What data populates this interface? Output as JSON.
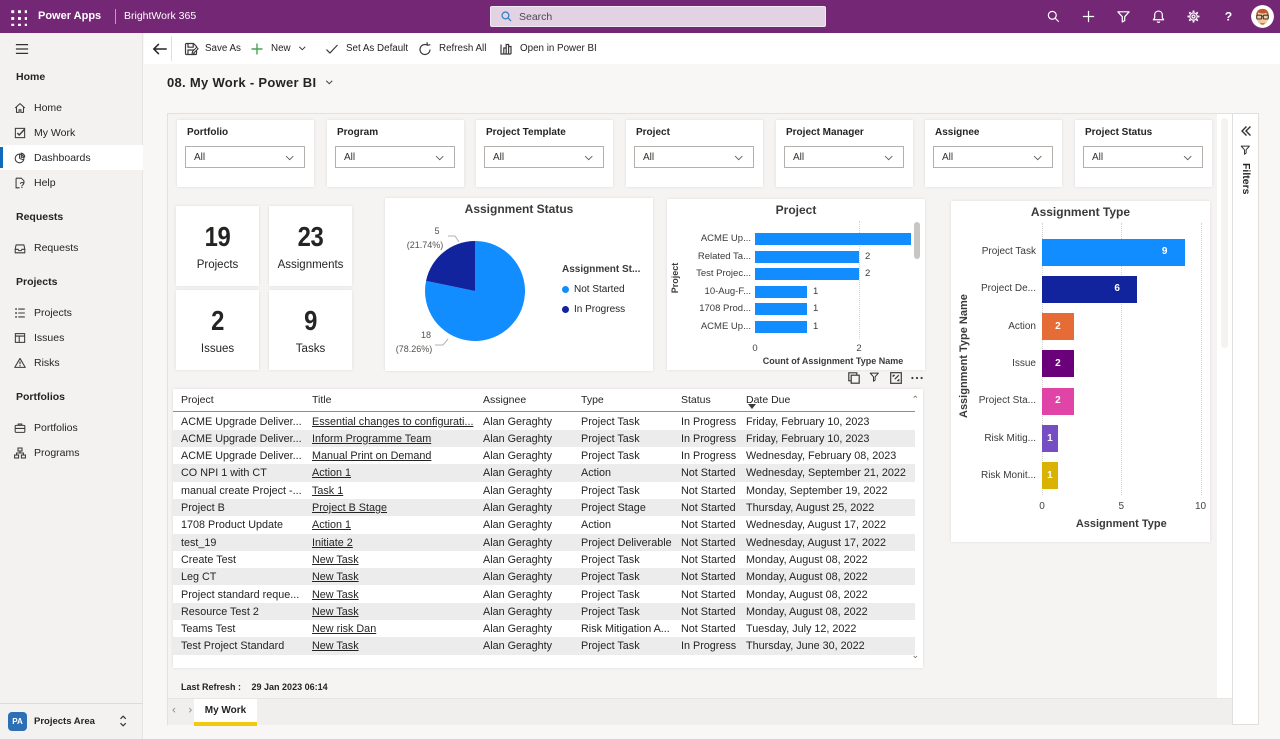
{
  "topbar": {
    "app_name": "Power Apps",
    "env_name": "BrightWork 365",
    "search_placeholder": "Search",
    "right_icons": [
      "search",
      "add",
      "filter",
      "bell",
      "gear",
      "help"
    ]
  },
  "sidebar": {
    "groups": [
      {
        "label": "Home",
        "items": [
          {
            "label": "Home",
            "icon": "home",
            "selected": false
          },
          {
            "label": "My Work",
            "icon": "mywork",
            "selected": false
          },
          {
            "label": "Dashboards",
            "icon": "dashboards",
            "selected": true
          },
          {
            "label": "Help",
            "icon": "helpdoc",
            "selected": false
          }
        ]
      },
      {
        "label": "Requests",
        "items": [
          {
            "label": "Requests",
            "icon": "requests",
            "selected": false
          }
        ]
      },
      {
        "label": "Projects",
        "items": [
          {
            "label": "Projects",
            "icon": "projects",
            "selected": false
          },
          {
            "label": "Issues",
            "icon": "issues",
            "selected": false
          },
          {
            "label": "Risks",
            "icon": "risks",
            "selected": false
          }
        ]
      },
      {
        "label": "Portfolios",
        "items": [
          {
            "label": "Portfolios",
            "icon": "portfolios",
            "selected": false
          },
          {
            "label": "Programs",
            "icon": "programs",
            "selected": false
          }
        ]
      }
    ],
    "footer": {
      "badge": "PA",
      "label": "Projects Area"
    }
  },
  "command_bar": {
    "items": [
      {
        "label": "Save As",
        "icon": "saveas",
        "chevron": false
      },
      {
        "label": "New",
        "icon": "plus-green",
        "chevron": true
      },
      {
        "label": "Set As Default",
        "icon": "check",
        "chevron": false
      },
      {
        "label": "Refresh All",
        "icon": "refresh",
        "chevron": false
      },
      {
        "label": "Open in Power BI",
        "icon": "openbi",
        "chevron": false
      }
    ]
  },
  "page": {
    "title": "08. My Work - Power BI"
  },
  "slicers": [
    {
      "label": "Portfolio",
      "value": "All"
    },
    {
      "label": "Program",
      "value": "All"
    },
    {
      "label": "Project Template",
      "value": "All"
    },
    {
      "label": "Project",
      "value": "All"
    },
    {
      "label": "Project Manager",
      "value": "All"
    },
    {
      "label": "Assignee",
      "value": "All"
    },
    {
      "label": "Project Status",
      "value": "All"
    }
  ],
  "kpis": [
    {
      "value": "19",
      "label": "Projects"
    },
    {
      "value": "23",
      "label": "Assignments"
    },
    {
      "value": "2",
      "label": "Issues"
    },
    {
      "value": "9",
      "label": "Tasks"
    }
  ],
  "chart_data": [
    {
      "id": "assignment-status-pie",
      "type": "pie",
      "title": "Assignment Status",
      "legend_title": "Assignment St...",
      "legend_position": "right",
      "slices": [
        {
          "label": "Not Started",
          "value": 18,
          "value_label": "18",
          "pct_label": "(78.26%)",
          "color": "#118DFF"
        },
        {
          "label": "In Progress",
          "value": 5,
          "value_label": "5",
          "pct_label": "(21.74%)",
          "color": "#12239E"
        }
      ]
    },
    {
      "id": "project-bar",
      "type": "bar",
      "orientation": "horizontal",
      "title": "Project",
      "categories": [
        "ACME Up...",
        "Related Ta...",
        "Test Projec...",
        "10-Aug-F...",
        "1708 Prod...",
        "ACME Up..."
      ],
      "values": [
        3,
        2,
        2,
        1,
        1,
        1
      ],
      "data_labels": [
        "",
        "2",
        "2",
        "1",
        "1",
        "1"
      ],
      "bar_color": "#118DFF",
      "xlabel": "Count of Assignment Type Name",
      "ylabel": "Project",
      "x_ticks": [
        "0",
        "2"
      ],
      "x_tick_values": [
        0,
        2
      ],
      "xlim": [
        0,
        3
      ],
      "grid": true
    },
    {
      "id": "assignment-type-bar",
      "type": "bar",
      "orientation": "horizontal",
      "title": "Assignment Type",
      "categories": [
        "Project Task",
        "Project De...",
        "Action",
        "Issue",
        "Project Sta...",
        "Risk Mitig...",
        "Risk Monit..."
      ],
      "values": [
        9,
        6,
        2,
        2,
        2,
        1,
        1
      ],
      "data_labels": [
        "9",
        "6",
        "2",
        "2",
        "2",
        "1",
        "1"
      ],
      "bar_colors": [
        "#118DFF",
        "#12239E",
        "#E66C37",
        "#6B007B",
        "#E044A7",
        "#744EC2",
        "#D9B300"
      ],
      "xlabel": "Assignment Type",
      "ylabel": "Assignment Type Name",
      "x_ticks": [
        "0",
        "5",
        "10"
      ],
      "x_tick_values": [
        0,
        5,
        10
      ],
      "xlim": [
        0,
        10
      ],
      "grid": true
    }
  ],
  "table": {
    "columns": [
      "Project",
      "Title",
      "Assignee",
      "Type",
      "Status",
      "Date Due"
    ],
    "sort_column": "Date Due",
    "rows": [
      [
        "ACME Upgrade Deliver...",
        "Essential changes to configurati...",
        "Alan Geraghty",
        "Project Task",
        "In Progress",
        "Friday, February 10, 2023"
      ],
      [
        "ACME Upgrade Deliver...",
        "Inform Programme Team",
        "Alan Geraghty",
        "Project Task",
        "In Progress",
        "Friday, February 10, 2023"
      ],
      [
        "ACME Upgrade Deliver...",
        "Manual Print on Demand",
        "Alan Geraghty",
        "Project Task",
        "In Progress",
        "Wednesday, February 08, 2023"
      ],
      [
        "CO NPI 1 with CT",
        "Action 1",
        "Alan Geraghty",
        "Action",
        "Not Started",
        "Wednesday, September 21, 2022"
      ],
      [
        "manual create Project -...",
        "Task 1",
        "Alan Geraghty",
        "Project Task",
        "Not Started",
        "Monday, September 19, 2022"
      ],
      [
        "Project B",
        "Project B Stage",
        "Alan Geraghty",
        "Project Stage",
        "Not Started",
        "Thursday, August 25, 2022"
      ],
      [
        "1708 Product Update",
        "Action 1",
        "Alan Geraghty",
        "Action",
        "Not Started",
        "Wednesday, August 17, 2022"
      ],
      [
        "test_19",
        "Initiate 2",
        "Alan Geraghty",
        "Project Deliverable",
        "Not Started",
        "Wednesday, August 17, 2022"
      ],
      [
        "Create Test",
        "New Task",
        "Alan Geraghty",
        "Project Task",
        "Not Started",
        "Monday, August 08, 2022"
      ],
      [
        "Leg CT",
        "New Task",
        "Alan Geraghty",
        "Project Task",
        "Not Started",
        "Monday, August 08, 2022"
      ],
      [
        "Project standard reque...",
        "New Task",
        "Alan Geraghty",
        "Project Task",
        "Not Started",
        "Monday, August 08, 2022"
      ],
      [
        "Resource Test 2",
        "New Task",
        "Alan Geraghty",
        "Project Task",
        "Not Started",
        "Monday, August 08, 2022"
      ],
      [
        "Teams Test",
        "New risk Dan",
        "Alan Geraghty",
        "Risk Mitigation A...",
        "Not Started",
        "Tuesday, July 12, 2022"
      ],
      [
        "Test Project Standard",
        "New Task",
        "Alan Geraghty",
        "Project Task",
        "In Progress",
        "Thursday, June 30, 2022"
      ]
    ]
  },
  "footer": {
    "last_refresh_label": "Last Refresh :",
    "last_refresh_value": "29 Jan 2023 06:14",
    "tabs": [
      {
        "label": "My Work",
        "active": true
      }
    ]
  },
  "filters_pane": {
    "label": "Filters"
  },
  "colors": {
    "header_purple": "#742774",
    "powerbi_yellow": "#f2c811",
    "nav_selected_blue": "#0f6cbd",
    "bar_blue": "#118DFF",
    "bar_navy": "#12239E",
    "table_stripe": "#ececec",
    "table_header_line": "#5b9bd5"
  }
}
